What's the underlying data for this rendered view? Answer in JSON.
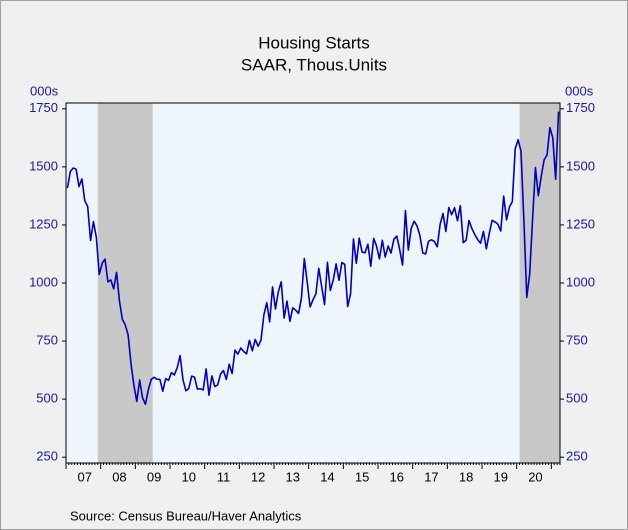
{
  "chart_data": {
    "type": "line",
    "title": "Housing Starts",
    "subtitle": "SAAR, Thous.Units",
    "y_unit_left": "000s",
    "y_unit_right": "000s",
    "source": "Source:  Census Bureau/Haver Analytics",
    "ylim": [
      225,
      1775
    ],
    "yticks": [
      250,
      500,
      750,
      1000,
      1250,
      1500,
      1750
    ],
    "color": "#0000c0",
    "recessions": [
      [
        11,
        29
      ],
      [
        157,
        170
      ]
    ],
    "categories": [
      null,
      null,
      null,
      null,
      null,
      null,
      "07",
      null,
      null,
      null,
      null,
      null,
      null,
      null,
      null,
      null,
      null,
      null,
      "08",
      null,
      null,
      null,
      null,
      null,
      null,
      null,
      null,
      null,
      null,
      null,
      "09",
      null,
      null,
      null,
      null,
      null,
      null,
      null,
      null,
      null,
      null,
      null,
      "10",
      null,
      null,
      null,
      null,
      null,
      null,
      null,
      null,
      null,
      null,
      null,
      "11",
      null,
      null,
      null,
      null,
      null,
      null,
      null,
      null,
      null,
      null,
      null,
      "12",
      null,
      null,
      null,
      null,
      null,
      null,
      null,
      null,
      null,
      null,
      null,
      "13",
      null,
      null,
      null,
      null,
      null,
      null,
      null,
      null,
      null,
      null,
      null,
      "14",
      null,
      null,
      null,
      null,
      null,
      null,
      null,
      null,
      null,
      null,
      null,
      "15",
      null,
      null,
      null,
      null,
      null,
      null,
      null,
      null,
      null,
      null,
      null,
      "16",
      null,
      null,
      null,
      null,
      null,
      null,
      null,
      null,
      null,
      null,
      null,
      "17",
      null,
      null,
      null,
      null,
      null,
      null,
      null,
      null,
      null,
      null,
      null,
      "18",
      null,
      null,
      null,
      null,
      null,
      null,
      null,
      null,
      null,
      null,
      null,
      "19",
      null,
      null,
      null,
      null,
      null,
      null,
      null,
      null,
      null,
      null,
      null,
      "20",
      null,
      null,
      null,
      null,
      null,
      null,
      null,
      null
    ],
    "values": [
      1409,
      1480,
      1495,
      1490,
      1415,
      1448,
      1354,
      1330,
      1183,
      1264,
      1197,
      1037,
      1084,
      1103,
      1005,
      1013,
      975,
      1046,
      923,
      844,
      820,
      777,
      652,
      560,
      490,
      582,
      505,
      478,
      540,
      585,
      594,
      586,
      585,
      534,
      588,
      581,
      614,
      604,
      636,
      687,
      583,
      536,
      546,
      599,
      594,
      543,
      545,
      539,
      630,
      517,
      600,
      554,
      561,
      608,
      623,
      585,
      650,
      610,
      711,
      694,
      720,
      705,
      695,
      753,
      708,
      757,
      728,
      754,
      863,
      915,
      833,
      983,
      888,
      962,
      1005,
      849,
      922,
      835,
      893,
      883,
      869,
      936,
      1105,
      1003,
      897,
      928,
      953,
      1063,
      985,
      907,
      1089,
      968,
      1012,
      1082,
      1012,
      1088,
      1080,
      899,
      953,
      1190,
      1085,
      1193,
      1133,
      1130,
      1167,
      1072,
      1192,
      1159,
      1104,
      1184,
      1112,
      1159,
      1129,
      1188,
      1202,
      1144,
      1077,
      1312,
      1142,
      1235,
      1266,
      1246,
      1205,
      1129,
      1125,
      1180,
      1186,
      1179,
      1156,
      1252,
      1299,
      1222,
      1325,
      1294,
      1324,
      1268,
      1333,
      1174,
      1184,
      1269,
      1234,
      1209,
      1187,
      1171,
      1222,
      1147,
      1212,
      1270,
      1263,
      1253,
      1224,
      1374,
      1272,
      1327,
      1351,
      1578,
      1617,
      1567,
      1269,
      938,
      1038,
      1273,
      1497,
      1376,
      1459,
      1530,
      1551,
      1669,
      1625,
      1447,
      1738
    ]
  }
}
